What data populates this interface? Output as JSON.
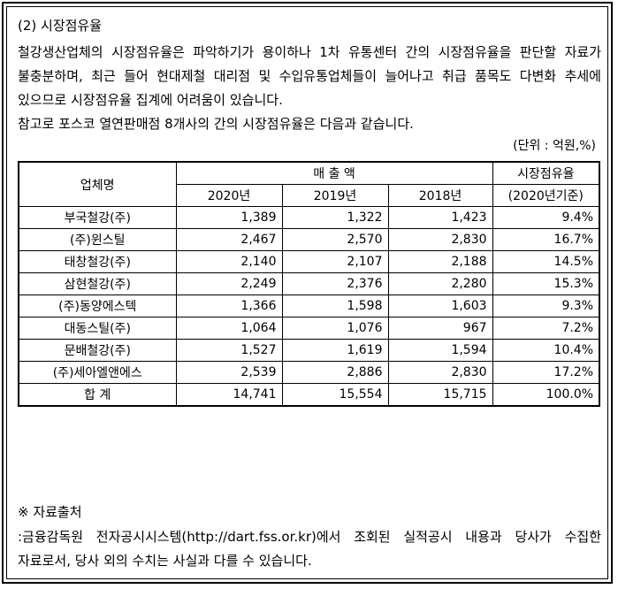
{
  "section_heading": "(2) 시장점유율",
  "intro_paragraph": "철강생산업체의 시장점유율은 파악하기가 용이하나 1차 유통센터 간의 시장점유율을 판단할 자료가 불충분하며, 최근 들어 현대제철 대리점 및 수입유통업체들이 늘어나고 취급 품목도 다변화 추세에 있으므로 시장점유율 집계에 어려움이 있습니다.",
  "reference_note": "참고로 포스코 열연판매점 8개사의 간의 시장점유율은 다음과 같습니다.",
  "unit_label": "(단위 : 억원,%)",
  "table": {
    "col_company": "업체명",
    "col_sales": "매 출 액",
    "col_share": "시장점유율",
    "col_share_sub": "(2020년기준)",
    "years": [
      "2020년",
      "2019년",
      "2018년"
    ],
    "rows": [
      {
        "name": "부국철강(주)",
        "y2020": "1,389",
        "y2019": "1,322",
        "y2018": "1,423",
        "share": "9.4%"
      },
      {
        "name": "(주)윈스틸",
        "y2020": "2,467",
        "y2019": "2,570",
        "y2018": "2,830",
        "share": "16.7%"
      },
      {
        "name": "태창철강(주)",
        "y2020": "2,140",
        "y2019": "2,107",
        "y2018": "2,188",
        "share": "14.5%"
      },
      {
        "name": "삼현철강(주)",
        "y2020": "2,249",
        "y2019": "2,376",
        "y2018": "2,280",
        "share": "15.3%"
      },
      {
        "name": "(주)동양에스텍",
        "y2020": "1,366",
        "y2019": "1,598",
        "y2018": "1,603",
        "share": "9.3%"
      },
      {
        "name": "대동스틸(주)",
        "y2020": "1,064",
        "y2019": "1,076",
        "y2018": "967",
        "share": "7.2%"
      },
      {
        "name": "문배철강(주)",
        "y2020": "1,527",
        "y2019": "1,619",
        "y2018": "1,594",
        "share": "10.4%"
      },
      {
        "name": "(주)세아엘앤에스",
        "y2020": "2,539",
        "y2019": "2,886",
        "y2018": "2,830",
        "share": "17.2%"
      },
      {
        "name": "합 계",
        "y2020": "14,741",
        "y2019": "15,554",
        "y2018": "15,715",
        "share": "100.0%"
      }
    ]
  },
  "source_title": "※ 자료출처",
  "source_text": ":금융감독원 전자공시시스템(http://dart.fss.or.kr)에서 조회된 실적공시 내용과 당사가 수집한 자료로서, 당사 외의 수치는 사실과 다를 수 있습니다."
}
